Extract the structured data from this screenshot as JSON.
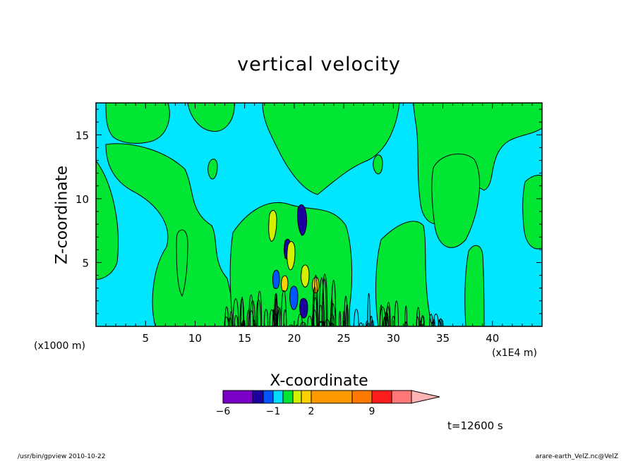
{
  "chart_data": {
    "type": "heatmap",
    "title": "vertical velocity",
    "xlabel": "X-coordinate",
    "ylabel": "Z-coordinate",
    "x_unit": "(x1E4 m)",
    "y_unit": "(x1000 m)",
    "xlim": [
      0,
      45
    ],
    "ylim": [
      0,
      17.5
    ],
    "x_ticks": [
      5,
      10,
      15,
      20,
      25,
      30,
      35,
      40
    ],
    "y_ticks": [
      5,
      10,
      15
    ],
    "time_label": "t=12600 s",
    "colorbar": {
      "tick_labels": [
        {
          "value": -6,
          "label": "−6"
        },
        {
          "value": -1,
          "label": "−1"
        },
        {
          "value": 2,
          "label": "2"
        },
        {
          "value": 9,
          "label": "9"
        }
      ],
      "colors": [
        "#7a00c8",
        "#1c00a0",
        "#0055ff",
        "#00dcff",
        "#00e633",
        "#d4f000",
        "#ffd000",
        "#ff9900",
        "#ff7800",
        "#ff1e1e",
        "#ff7878",
        "#ffb4b4"
      ],
      "extend": "max"
    },
    "background_color": "#00e6ff",
    "positive_weak_color": "#00e633"
  },
  "footer": {
    "left": "/usr/bin/gpview   2010-10-22",
    "right": "arare-earth_VelZ.nc@VelZ"
  }
}
